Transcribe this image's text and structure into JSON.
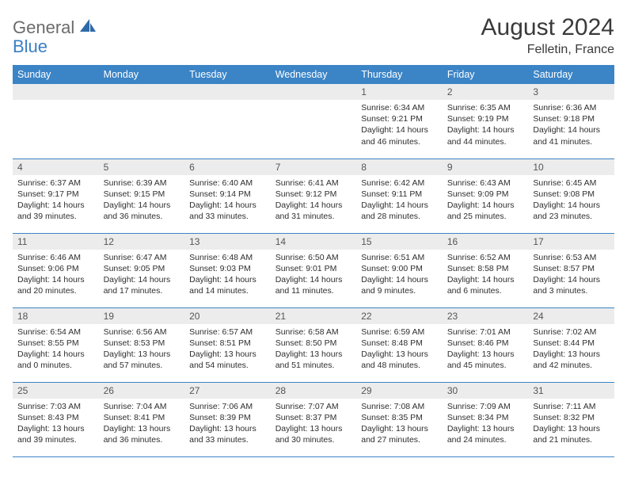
{
  "logo": {
    "line1": "General",
    "line2": "Blue"
  },
  "title": "August 2024",
  "subtitle": "Felletin, France",
  "colors": {
    "header_bar": "#3b84c6",
    "row_divider": "#3b84c6",
    "daynum_bg": "#ececec",
    "logo_gray": "#6b6b6b",
    "logo_blue": "#3a7fc4"
  },
  "weekdays": [
    "Sunday",
    "Monday",
    "Tuesday",
    "Wednesday",
    "Thursday",
    "Friday",
    "Saturday"
  ],
  "weeks": [
    [
      null,
      null,
      null,
      null,
      {
        "n": "1",
        "sr": "6:34 AM",
        "ss": "9:21 PM",
        "dl": "14 hours and 46 minutes."
      },
      {
        "n": "2",
        "sr": "6:35 AM",
        "ss": "9:19 PM",
        "dl": "14 hours and 44 minutes."
      },
      {
        "n": "3",
        "sr": "6:36 AM",
        "ss": "9:18 PM",
        "dl": "14 hours and 41 minutes."
      }
    ],
    [
      {
        "n": "4",
        "sr": "6:37 AM",
        "ss": "9:17 PM",
        "dl": "14 hours and 39 minutes."
      },
      {
        "n": "5",
        "sr": "6:39 AM",
        "ss": "9:15 PM",
        "dl": "14 hours and 36 minutes."
      },
      {
        "n": "6",
        "sr": "6:40 AM",
        "ss": "9:14 PM",
        "dl": "14 hours and 33 minutes."
      },
      {
        "n": "7",
        "sr": "6:41 AM",
        "ss": "9:12 PM",
        "dl": "14 hours and 31 minutes."
      },
      {
        "n": "8",
        "sr": "6:42 AM",
        "ss": "9:11 PM",
        "dl": "14 hours and 28 minutes."
      },
      {
        "n": "9",
        "sr": "6:43 AM",
        "ss": "9:09 PM",
        "dl": "14 hours and 25 minutes."
      },
      {
        "n": "10",
        "sr": "6:45 AM",
        "ss": "9:08 PM",
        "dl": "14 hours and 23 minutes."
      }
    ],
    [
      {
        "n": "11",
        "sr": "6:46 AM",
        "ss": "9:06 PM",
        "dl": "14 hours and 20 minutes."
      },
      {
        "n": "12",
        "sr": "6:47 AM",
        "ss": "9:05 PM",
        "dl": "14 hours and 17 minutes."
      },
      {
        "n": "13",
        "sr": "6:48 AM",
        "ss": "9:03 PM",
        "dl": "14 hours and 14 minutes."
      },
      {
        "n": "14",
        "sr": "6:50 AM",
        "ss": "9:01 PM",
        "dl": "14 hours and 11 minutes."
      },
      {
        "n": "15",
        "sr": "6:51 AM",
        "ss": "9:00 PM",
        "dl": "14 hours and 9 minutes."
      },
      {
        "n": "16",
        "sr": "6:52 AM",
        "ss": "8:58 PM",
        "dl": "14 hours and 6 minutes."
      },
      {
        "n": "17",
        "sr": "6:53 AM",
        "ss": "8:57 PM",
        "dl": "14 hours and 3 minutes."
      }
    ],
    [
      {
        "n": "18",
        "sr": "6:54 AM",
        "ss": "8:55 PM",
        "dl": "14 hours and 0 minutes."
      },
      {
        "n": "19",
        "sr": "6:56 AM",
        "ss": "8:53 PM",
        "dl": "13 hours and 57 minutes."
      },
      {
        "n": "20",
        "sr": "6:57 AM",
        "ss": "8:51 PM",
        "dl": "13 hours and 54 minutes."
      },
      {
        "n": "21",
        "sr": "6:58 AM",
        "ss": "8:50 PM",
        "dl": "13 hours and 51 minutes."
      },
      {
        "n": "22",
        "sr": "6:59 AM",
        "ss": "8:48 PM",
        "dl": "13 hours and 48 minutes."
      },
      {
        "n": "23",
        "sr": "7:01 AM",
        "ss": "8:46 PM",
        "dl": "13 hours and 45 minutes."
      },
      {
        "n": "24",
        "sr": "7:02 AM",
        "ss": "8:44 PM",
        "dl": "13 hours and 42 minutes."
      }
    ],
    [
      {
        "n": "25",
        "sr": "7:03 AM",
        "ss": "8:43 PM",
        "dl": "13 hours and 39 minutes."
      },
      {
        "n": "26",
        "sr": "7:04 AM",
        "ss": "8:41 PM",
        "dl": "13 hours and 36 minutes."
      },
      {
        "n": "27",
        "sr": "7:06 AM",
        "ss": "8:39 PM",
        "dl": "13 hours and 33 minutes."
      },
      {
        "n": "28",
        "sr": "7:07 AM",
        "ss": "8:37 PM",
        "dl": "13 hours and 30 minutes."
      },
      {
        "n": "29",
        "sr": "7:08 AM",
        "ss": "8:35 PM",
        "dl": "13 hours and 27 minutes."
      },
      {
        "n": "30",
        "sr": "7:09 AM",
        "ss": "8:34 PM",
        "dl": "13 hours and 24 minutes."
      },
      {
        "n": "31",
        "sr": "7:11 AM",
        "ss": "8:32 PM",
        "dl": "13 hours and 21 minutes."
      }
    ]
  ],
  "labels": {
    "sunrise": "Sunrise:",
    "sunset": "Sunset:",
    "daylight": "Daylight:"
  }
}
